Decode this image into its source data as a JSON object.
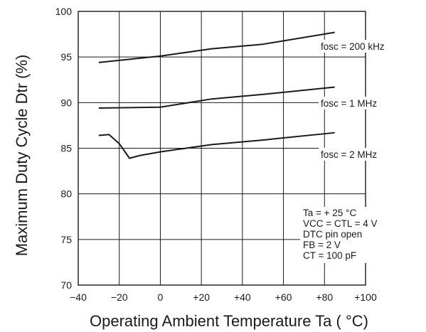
{
  "chart_data": {
    "type": "line",
    "title": "",
    "xlabel": "Operating Ambient Temperature Ta ( °C)",
    "ylabel": "Maximum Duty Cycle Dtr (%)",
    "xlim": [
      -40,
      100
    ],
    "ylim": [
      70,
      100
    ],
    "x_ticks": [
      -40,
      -20,
      0,
      20,
      40,
      60,
      80,
      100
    ],
    "x_tick_labels": [
      "−40",
      "−20",
      "0",
      "+20",
      "+40",
      "+60",
      "+80",
      "+100"
    ],
    "y_ticks": [
      70,
      75,
      80,
      85,
      90,
      95,
      100
    ],
    "y_tick_labels": [
      "70",
      "75",
      "80",
      "85",
      "90",
      "95",
      "100"
    ],
    "grid": true,
    "series": [
      {
        "name": "fosc = 200 kHz",
        "x": [
          -30,
          0,
          25,
          50,
          85
        ],
        "y": [
          94.4,
          95.1,
          95.9,
          96.4,
          97.7
        ]
      },
      {
        "name": "fosc = 1 MHz",
        "x": [
          -30,
          0,
          25,
          50,
          85
        ],
        "y": [
          89.4,
          89.5,
          90.4,
          90.9,
          91.7
        ]
      },
      {
        "name": "fosc = 2 MHz",
        "x": [
          -30,
          -25,
          -20,
          -15,
          -10,
          0,
          25,
          50,
          85
        ],
        "y": [
          86.4,
          86.5,
          85.5,
          83.9,
          84.2,
          84.6,
          85.4,
          85.9,
          86.7
        ]
      }
    ],
    "annotations": [
      "Ta = + 25 °C",
      "VCC = CTL = 4 V",
      "DTC pin open",
      "FB = 2 V",
      "CT = 100 pF"
    ]
  }
}
